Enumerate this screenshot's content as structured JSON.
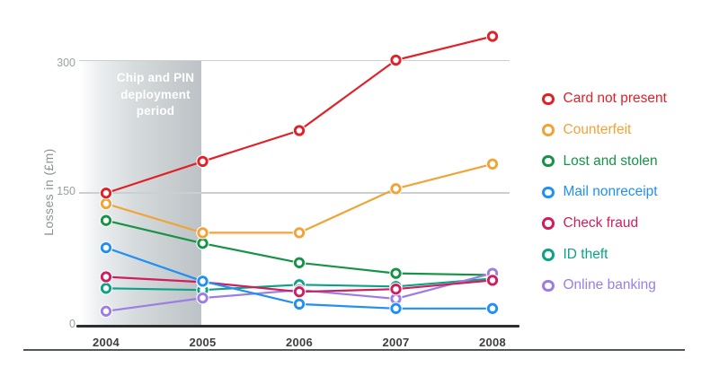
{
  "figure": {
    "annotation_lines": [
      "Chip and PIN",
      "deployment",
      "period"
    ]
  },
  "chart_data": {
    "type": "line",
    "title": "",
    "categories": [
      "2004",
      "2005",
      "2006",
      "2007",
      "2008"
    ],
    "ylabel": "Losses in (£m)",
    "ylim": [
      0,
      345
    ],
    "yticks": [
      0,
      150,
      300
    ],
    "grid": "horizontal gridlines at 150 and 300",
    "legend_position": "right",
    "annotation": {
      "text": "Chip and PIN deployment period",
      "span_categories": [
        "2004",
        "2005"
      ]
    },
    "series": [
      {
        "name": "Card not present",
        "color": "#e02128",
        "values": [
          149,
          185,
          220,
          300,
          327
        ]
      },
      {
        "name": "Counterfeit",
        "color": "#f2a338",
        "values": [
          137,
          104,
          104,
          154,
          182
        ]
      },
      {
        "name": "Lost and stolen",
        "color": "#169347",
        "values": [
          118,
          92,
          70,
          58,
          56
        ]
      },
      {
        "name": "Mail nonreceipt",
        "color": "#2190f2",
        "values": [
          87,
          49,
          23,
          18,
          18
        ]
      },
      {
        "name": "Check fraud",
        "color": "#d01d5e",
        "values": [
          54,
          48,
          37,
          40,
          50
        ]
      },
      {
        "name": "ID theft",
        "color": "#0ca287",
        "values": [
          41,
          39,
          45,
          43,
          52
        ]
      },
      {
        "name": "Online banking",
        "color": "#9b7de4",
        "values": [
          15,
          30,
          39,
          29,
          58
        ]
      }
    ]
  }
}
